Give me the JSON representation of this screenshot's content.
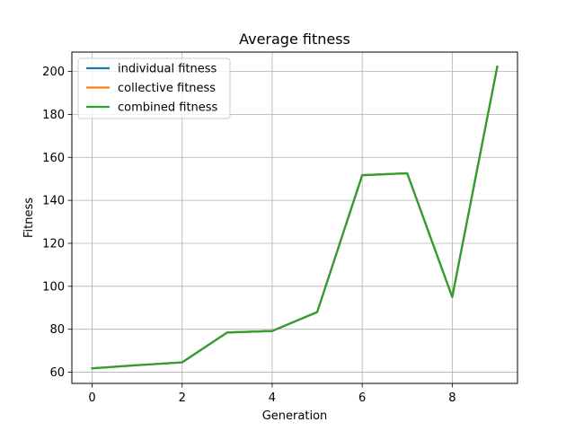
{
  "chart_data": {
    "type": "line",
    "title": "Average fitness",
    "xlabel": "Generation",
    "ylabel": "Fitness",
    "xlim": [
      -0.45,
      9.45
    ],
    "ylim": [
      54.8,
      209
    ],
    "xticks": [
      0,
      2,
      4,
      6,
      8
    ],
    "yticks": [
      60,
      80,
      100,
      120,
      140,
      160,
      180,
      200
    ],
    "grid": true,
    "legend_position": "top-left",
    "x": [
      0,
      1,
      2,
      3,
      4,
      5,
      6,
      7,
      8,
      9
    ],
    "series": [
      {
        "name": "individual fitness",
        "color": "#1f77b4",
        "values": [
          61.8,
          63.3,
          64.6,
          78.5,
          79.2,
          88.0,
          151.7,
          152.6,
          95.0,
          202.2
        ]
      },
      {
        "name": "collective fitness",
        "color": "#ff7f0e",
        "values": [
          61.8,
          63.3,
          64.6,
          78.5,
          79.2,
          88.0,
          151.7,
          152.6,
          95.0,
          202.2
        ]
      },
      {
        "name": "combined fitness",
        "color": "#2ca02c",
        "values": [
          61.8,
          63.3,
          64.6,
          78.5,
          79.2,
          88.0,
          151.7,
          152.6,
          95.0,
          202.2
        ]
      }
    ]
  }
}
